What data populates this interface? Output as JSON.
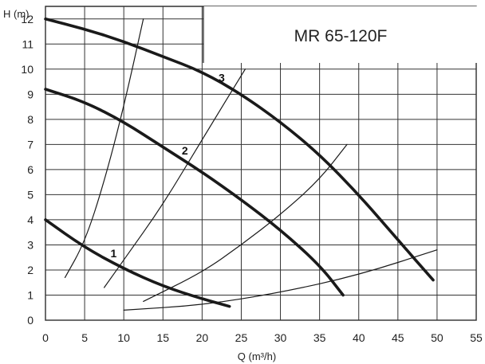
{
  "chart_data": {
    "type": "line",
    "title": "MR 65-120F",
    "xlabel": "Q (m³/h)",
    "ylabel": "H (m)",
    "xlim": [
      0,
      55
    ],
    "ylim": [
      0,
      12.5
    ],
    "x_ticks": [
      "0",
      "5",
      "10",
      "15",
      "20",
      "25",
      "30",
      "35",
      "40",
      "45",
      "50",
      "55"
    ],
    "y_ticks": [
      "0",
      "1",
      "2",
      "3",
      "4",
      "5",
      "6",
      "7",
      "8",
      "9",
      "10",
      "11",
      "12"
    ],
    "grid": true,
    "series": [
      {
        "name": "1",
        "kind": "pump",
        "x": [
          0,
          5,
          10,
          15,
          20,
          23.5
        ],
        "y": [
          4.0,
          2.9,
          2.05,
          1.35,
          0.85,
          0.55
        ]
      },
      {
        "name": "2",
        "kind": "pump",
        "x": [
          0,
          5,
          10,
          15,
          20,
          25,
          30,
          35,
          38
        ],
        "y": [
          9.2,
          8.7,
          7.9,
          6.9,
          5.9,
          4.8,
          3.6,
          2.2,
          1.0
        ]
      },
      {
        "name": "3",
        "kind": "pump",
        "x": [
          0,
          5,
          10,
          15,
          20,
          25,
          30,
          35,
          40,
          45,
          49.5
        ],
        "y": [
          12.0,
          11.6,
          11.1,
          10.5,
          9.9,
          9.0,
          7.9,
          6.6,
          5.0,
          3.2,
          1.6
        ]
      },
      {
        "kind": "system",
        "x": [
          2.5,
          5,
          7.5,
          10,
          12.5
        ],
        "y": [
          1.7,
          3.1,
          5.5,
          8.5,
          12.0
        ]
      },
      {
        "kind": "system",
        "x": [
          7.5,
          10,
          15,
          20,
          25.5
        ],
        "y": [
          1.3,
          2.4,
          4.6,
          7.2,
          10.0
        ]
      },
      {
        "kind": "system",
        "x": [
          12.5,
          20,
          25,
          30,
          35,
          38.5
        ],
        "y": [
          0.75,
          1.9,
          3.0,
          4.2,
          5.6,
          7.0
        ]
      },
      {
        "kind": "system",
        "x": [
          10,
          20,
          30,
          40,
          50
        ],
        "y": [
          0.4,
          0.6,
          1.1,
          1.8,
          2.8
        ]
      }
    ],
    "curve_labels": [
      {
        "text": "1",
        "x": 8.7,
        "y": 2.5
      },
      {
        "text": "2",
        "x": 17.8,
        "y": 6.6
      },
      {
        "text": "3",
        "x": 22.5,
        "y": 9.5
      }
    ]
  }
}
